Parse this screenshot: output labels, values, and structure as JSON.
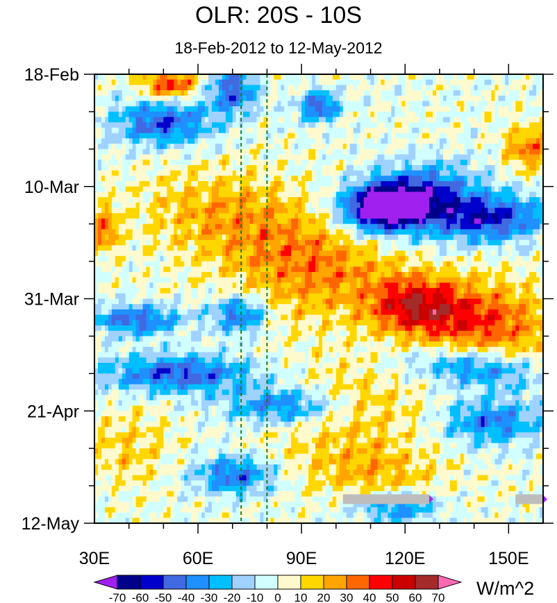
{
  "chart_data": {
    "type": "heatmap",
    "title": "OLR: 20S - 10S",
    "subtitle": "18-Feb-2012 to 12-May-2012",
    "units": "W/m^2",
    "x_ticks": [
      {
        "value": 30,
        "label": "30E"
      },
      {
        "value": 60,
        "label": "60E"
      },
      {
        "value": 90,
        "label": "90E"
      },
      {
        "value": 120,
        "label": "120E"
      },
      {
        "value": 150,
        "label": "150E"
      }
    ],
    "xlim": [
      30,
      160
    ],
    "y_ticks": [
      {
        "value": 0,
        "label": "18-Feb"
      },
      {
        "value": 21,
        "label": "10-Mar"
      },
      {
        "value": 42,
        "label": "31-Mar"
      },
      {
        "value": 63,
        "label": "21-Apr"
      },
      {
        "value": 84,
        "label": "12-May"
      }
    ],
    "ylim": [
      0,
      84
    ],
    "y_unit": "days",
    "reference_lines_x": [
      72.5,
      80
    ],
    "reference_line_color": "#1e7a1e",
    "missing_bars": [
      {
        "x_start": 102,
        "x_end": 127,
        "y": 79.5
      },
      {
        "x_start": 152,
        "x_end": 160,
        "y": 79.5
      }
    ],
    "colorbar": {
      "labels": [
        "-70",
        "-60",
        "-50",
        "-40",
        "-30",
        "-20",
        "-10",
        "0",
        "10",
        "20",
        "30",
        "40",
        "50",
        "60",
        "70"
      ],
      "boundaries": [
        -70,
        -60,
        -50,
        -40,
        -30,
        -20,
        -10,
        0,
        10,
        20,
        30,
        40,
        50,
        60,
        70
      ],
      "colors": [
        "#a020f0",
        "#00008b",
        "#0000cd",
        "#4169e1",
        "#1e90ff",
        "#00bfff",
        "#a0d2ff",
        "#d1ffff",
        "#fffacd",
        "#ffd700",
        "#ffa500",
        "#ff6600",
        "#ff0000",
        "#cd0000",
        "#a52a2a",
        "#ff69b4"
      ]
    },
    "features": [
      {
        "x": 120,
        "y": 24,
        "sx": 12,
        "sy": 4,
        "a": -80,
        "r": -0.25
      },
      {
        "x": 145,
        "y": 27,
        "sx": 11,
        "sy": 3,
        "a": -55,
        "r": -0.1
      },
      {
        "x": 112,
        "y": 25,
        "sx": 6,
        "sy": 2.5,
        "a": -45,
        "r": 0
      },
      {
        "x": 140,
        "y": 46,
        "sx": 16,
        "sy": 5,
        "a": 42,
        "r": 0.15
      },
      {
        "x": 122,
        "y": 43,
        "sx": 9,
        "sy": 3.5,
        "a": 38,
        "r": 0
      },
      {
        "x": 70,
        "y": 27,
        "sx": 17,
        "sy": 6,
        "a": 25,
        "r": 0.2
      },
      {
        "x": 95,
        "y": 36,
        "sx": 16,
        "sy": 7,
        "a": 28,
        "r": -0.2
      },
      {
        "x": 100,
        "y": 62,
        "sx": 18,
        "sy": 5,
        "a": 20,
        "r": 0.1
      },
      {
        "x": 50,
        "y": 9,
        "sx": 10,
        "sy": 3,
        "a": -48,
        "r": 0
      },
      {
        "x": 70,
        "y": 3,
        "sx": 5,
        "sy": 3,
        "a": -45,
        "r": 0
      },
      {
        "x": 95,
        "y": 6,
        "sx": 4,
        "sy": 2,
        "a": -50,
        "r": 0
      },
      {
        "x": 42,
        "y": 46,
        "sx": 9,
        "sy": 2,
        "a": -45,
        "r": 0
      },
      {
        "x": 55,
        "y": 56,
        "sx": 16,
        "sy": 2.5,
        "a": -48,
        "r": 0
      },
      {
        "x": 85,
        "y": 62,
        "sx": 12,
        "sy": 2.5,
        "a": -48,
        "r": 0
      },
      {
        "x": 72,
        "y": 45,
        "sx": 6,
        "sy": 2.5,
        "a": -45,
        "r": 0
      },
      {
        "x": 140,
        "y": 55,
        "sx": 12,
        "sy": 2.5,
        "a": -40,
        "r": 0.3
      },
      {
        "x": 145,
        "y": 65,
        "sx": 10,
        "sy": 3,
        "a": -40,
        "r": 0
      },
      {
        "x": 70,
        "y": 75,
        "sx": 8,
        "sy": 2.5,
        "a": -42,
        "r": 0
      },
      {
        "x": 118,
        "y": 81,
        "sx": 8,
        "sy": 2,
        "a": -38,
        "r": 0
      },
      {
        "x": 52,
        "y": 2,
        "sx": 6,
        "sy": 2,
        "a": 42,
        "r": 0
      },
      {
        "x": 33,
        "y": 29,
        "sx": 3,
        "sy": 3,
        "a": 32,
        "r": 0
      },
      {
        "x": 156,
        "y": 14,
        "sx": 5,
        "sy": 3,
        "a": 32,
        "r": 0
      },
      {
        "x": 40,
        "y": 70,
        "sx": 9,
        "sy": 5,
        "a": 15,
        "r": 0
      },
      {
        "x": 110,
        "y": 74,
        "sx": 14,
        "sy": 4,
        "a": 22,
        "r": 0.2
      }
    ]
  }
}
